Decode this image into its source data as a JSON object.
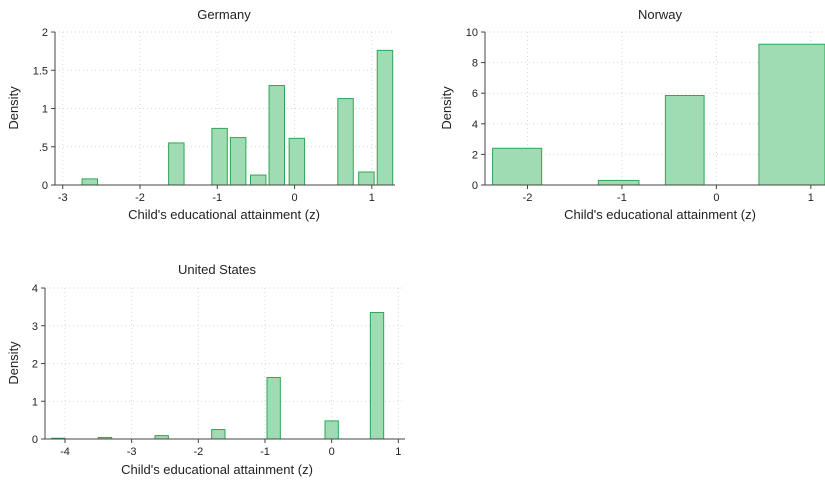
{
  "colors": {
    "bar_fill": "#9fdcb4",
    "bar_stroke": "#2ea655"
  },
  "chart_data": [
    {
      "type": "bar",
      "title": "Germany",
      "xlabel": "Child's educational attainment (z)",
      "ylabel": "Density",
      "xlim": [
        -3.1,
        1.3
      ],
      "ylim": [
        0,
        2
      ],
      "xticks": [
        {
          "v": -3,
          "label": "-3"
        },
        {
          "v": -2,
          "label": "-2"
        },
        {
          "v": -1,
          "label": "-1"
        },
        {
          "v": 0,
          "label": "0"
        },
        {
          "v": 1,
          "label": "1"
        }
      ],
      "yticks": [
        {
          "v": 0,
          "label": "0"
        },
        {
          "v": 0.5,
          "label": ".5"
        },
        {
          "v": 1,
          "label": "1"
        },
        {
          "v": 1.5,
          "label": "1.5"
        },
        {
          "v": 2,
          "label": "2"
        }
      ],
      "grid": true,
      "bars": [
        {
          "x0": -2.75,
          "x1": -2.55,
          "y": 0.08
        },
        {
          "x0": -1.63,
          "x1": -1.43,
          "y": 0.55
        },
        {
          "x0": -1.07,
          "x1": -0.87,
          "y": 0.74
        },
        {
          "x0": -0.83,
          "x1": -0.63,
          "y": 0.62
        },
        {
          "x0": -0.57,
          "x1": -0.37,
          "y": 0.13
        },
        {
          "x0": -0.33,
          "x1": -0.13,
          "y": 1.3
        },
        {
          "x0": -0.07,
          "x1": 0.13,
          "y": 0.61
        },
        {
          "x0": 0.56,
          "x1": 0.76,
          "y": 1.13
        },
        {
          "x0": 0.83,
          "x1": 1.03,
          "y": 0.17
        },
        {
          "x0": 1.07,
          "x1": 1.27,
          "y": 1.76
        }
      ]
    },
    {
      "type": "bar",
      "title": "Norway",
      "xlabel": "Child's educational attainment (z)",
      "ylabel": "Density",
      "xlim": [
        -2.45,
        1.15
      ],
      "ylim": [
        0,
        10
      ],
      "xticks": [
        {
          "v": -2,
          "label": "-2"
        },
        {
          "v": -1,
          "label": "-1"
        },
        {
          "v": 0,
          "label": "0"
        },
        {
          "v": 1,
          "label": "1"
        }
      ],
      "yticks": [
        {
          "v": 0,
          "label": "0"
        },
        {
          "v": 2,
          "label": "2"
        },
        {
          "v": 4,
          "label": "4"
        },
        {
          "v": 6,
          "label": "6"
        },
        {
          "v": 8,
          "label": "8"
        },
        {
          "v": 10,
          "label": "10"
        }
      ],
      "grid": true,
      "bars": [
        {
          "x0": -2.37,
          "x1": -1.85,
          "y": 2.4
        },
        {
          "x0": -1.25,
          "x1": -0.82,
          "y": 0.3
        },
        {
          "x0": -0.54,
          "x1": -0.13,
          "y": 5.85
        },
        {
          "x0": 0.45,
          "x1": 1.15,
          "y": 9.2
        }
      ]
    },
    {
      "type": "bar",
      "title": "United States",
      "xlabel": "Child's educational attainment (z)",
      "ylabel": "Density",
      "xlim": [
        -4.3,
        1.1
      ],
      "ylim": [
        0,
        4
      ],
      "xticks": [
        {
          "v": -4,
          "label": "-4"
        },
        {
          "v": -3,
          "label": "-3"
        },
        {
          "v": -2,
          "label": "-2"
        },
        {
          "v": -1,
          "label": "-1"
        },
        {
          "v": 0,
          "label": "0"
        },
        {
          "v": 1,
          "label": "1"
        }
      ],
      "yticks": [
        {
          "v": 0,
          "label": "0"
        },
        {
          "v": 1,
          "label": "1"
        },
        {
          "v": 2,
          "label": "2"
        },
        {
          "v": 3,
          "label": "3"
        },
        {
          "v": 4,
          "label": "4"
        }
      ],
      "grid": true,
      "bars": [
        {
          "x0": -4.2,
          "x1": -4.0,
          "y": 0.02
        },
        {
          "x0": -3.5,
          "x1": -3.3,
          "y": 0.04
        },
        {
          "x0": -2.65,
          "x1": -2.45,
          "y": 0.09
        },
        {
          "x0": -1.8,
          "x1": -1.6,
          "y": 0.25
        },
        {
          "x0": -0.97,
          "x1": -0.77,
          "y": 1.63
        },
        {
          "x0": -0.1,
          "x1": 0.1,
          "y": 0.48
        },
        {
          "x0": 0.58,
          "x1": 0.78,
          "y": 3.35
        }
      ]
    }
  ]
}
